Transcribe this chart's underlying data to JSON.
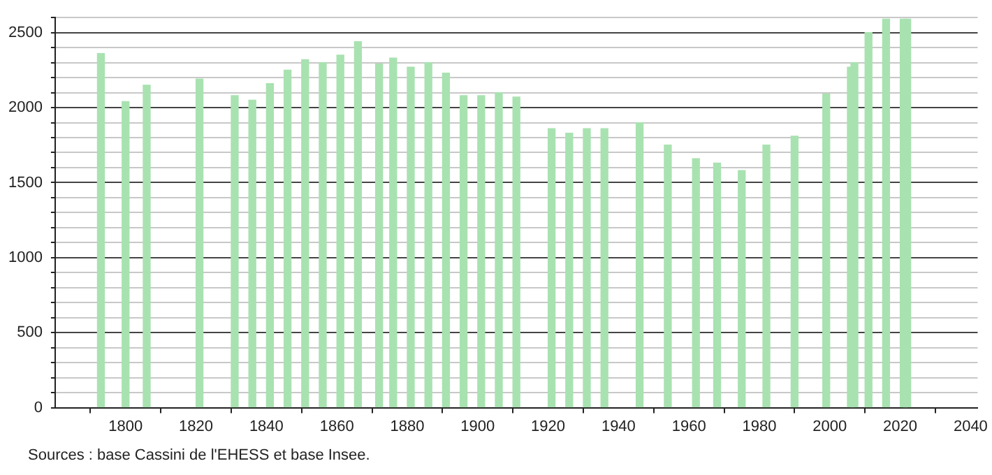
{
  "chart_data": {
    "type": "bar",
    "x": [
      1793,
      1800,
      1806,
      1821,
      1831,
      1836,
      1841,
      1846,
      1851,
      1856,
      1861,
      1866,
      1872,
      1876,
      1881,
      1886,
      1891,
      1896,
      1901,
      1906,
      1911,
      1921,
      1926,
      1931,
      1936,
      1946,
      1954,
      1962,
      1968,
      1975,
      1982,
      1990,
      1999,
      2006,
      2007,
      2011,
      2016,
      2021,
      2022
    ],
    "values": [
      2360,
      2040,
      2150,
      2190,
      2080,
      2050,
      2160,
      2250,
      2320,
      2300,
      2350,
      2440,
      2290,
      2330,
      2270,
      2300,
      2230,
      2080,
      2080,
      2100,
      2070,
      1860,
      1830,
      1860,
      1860,
      1900,
      1750,
      1660,
      1630,
      1580,
      1750,
      1810,
      2090,
      2270,
      2300,
      2500,
      2590,
      2590,
      2590
    ],
    "color": "#a8e2b0",
    "xlim": [
      1780,
      2042
    ],
    "xticks": [
      1800,
      1820,
      1840,
      1860,
      1880,
      1900,
      1920,
      1940,
      1960,
      1980,
      2000,
      2020,
      2040
    ],
    "ylim": [
      0,
      2600
    ],
    "yticks": [
      0,
      {
        "value": 100,
        "label": null
      },
      {
        "value": 200,
        "label": null
      },
      {
        "value": 300,
        "label": null
      },
      {
        "value": 400,
        "label": null
      },
      500,
      {
        "value": 600,
        "label": null
      },
      {
        "value": 700,
        "label": null
      },
      {
        "value": 800,
        "label": null
      },
      {
        "value": 900,
        "label": null
      },
      1000,
      {
        "value": 1100,
        "label": null
      },
      {
        "value": 1200,
        "label": null
      },
      {
        "value": 1300,
        "label": null
      },
      {
        "value": 1400,
        "label": null
      },
      1500,
      {
        "value": 1600,
        "label": null
      },
      {
        "value": 1700,
        "label": null
      },
      {
        "value": 1800,
        "label": null
      },
      {
        "value": 1900,
        "label": null
      },
      2000,
      {
        "value": 2100,
        "label": null
      },
      {
        "value": 2200,
        "label": null
      },
      {
        "value": 2300,
        "label": null
      },
      {
        "value": 2400,
        "label": null
      },
      2500,
      {
        "value": 2600,
        "label": null
      }
    ],
    "grid": "y",
    "legend": false,
    "annotations": [
      "Sources : base Cassini de l'EHESS et base Insee."
    ]
  }
}
